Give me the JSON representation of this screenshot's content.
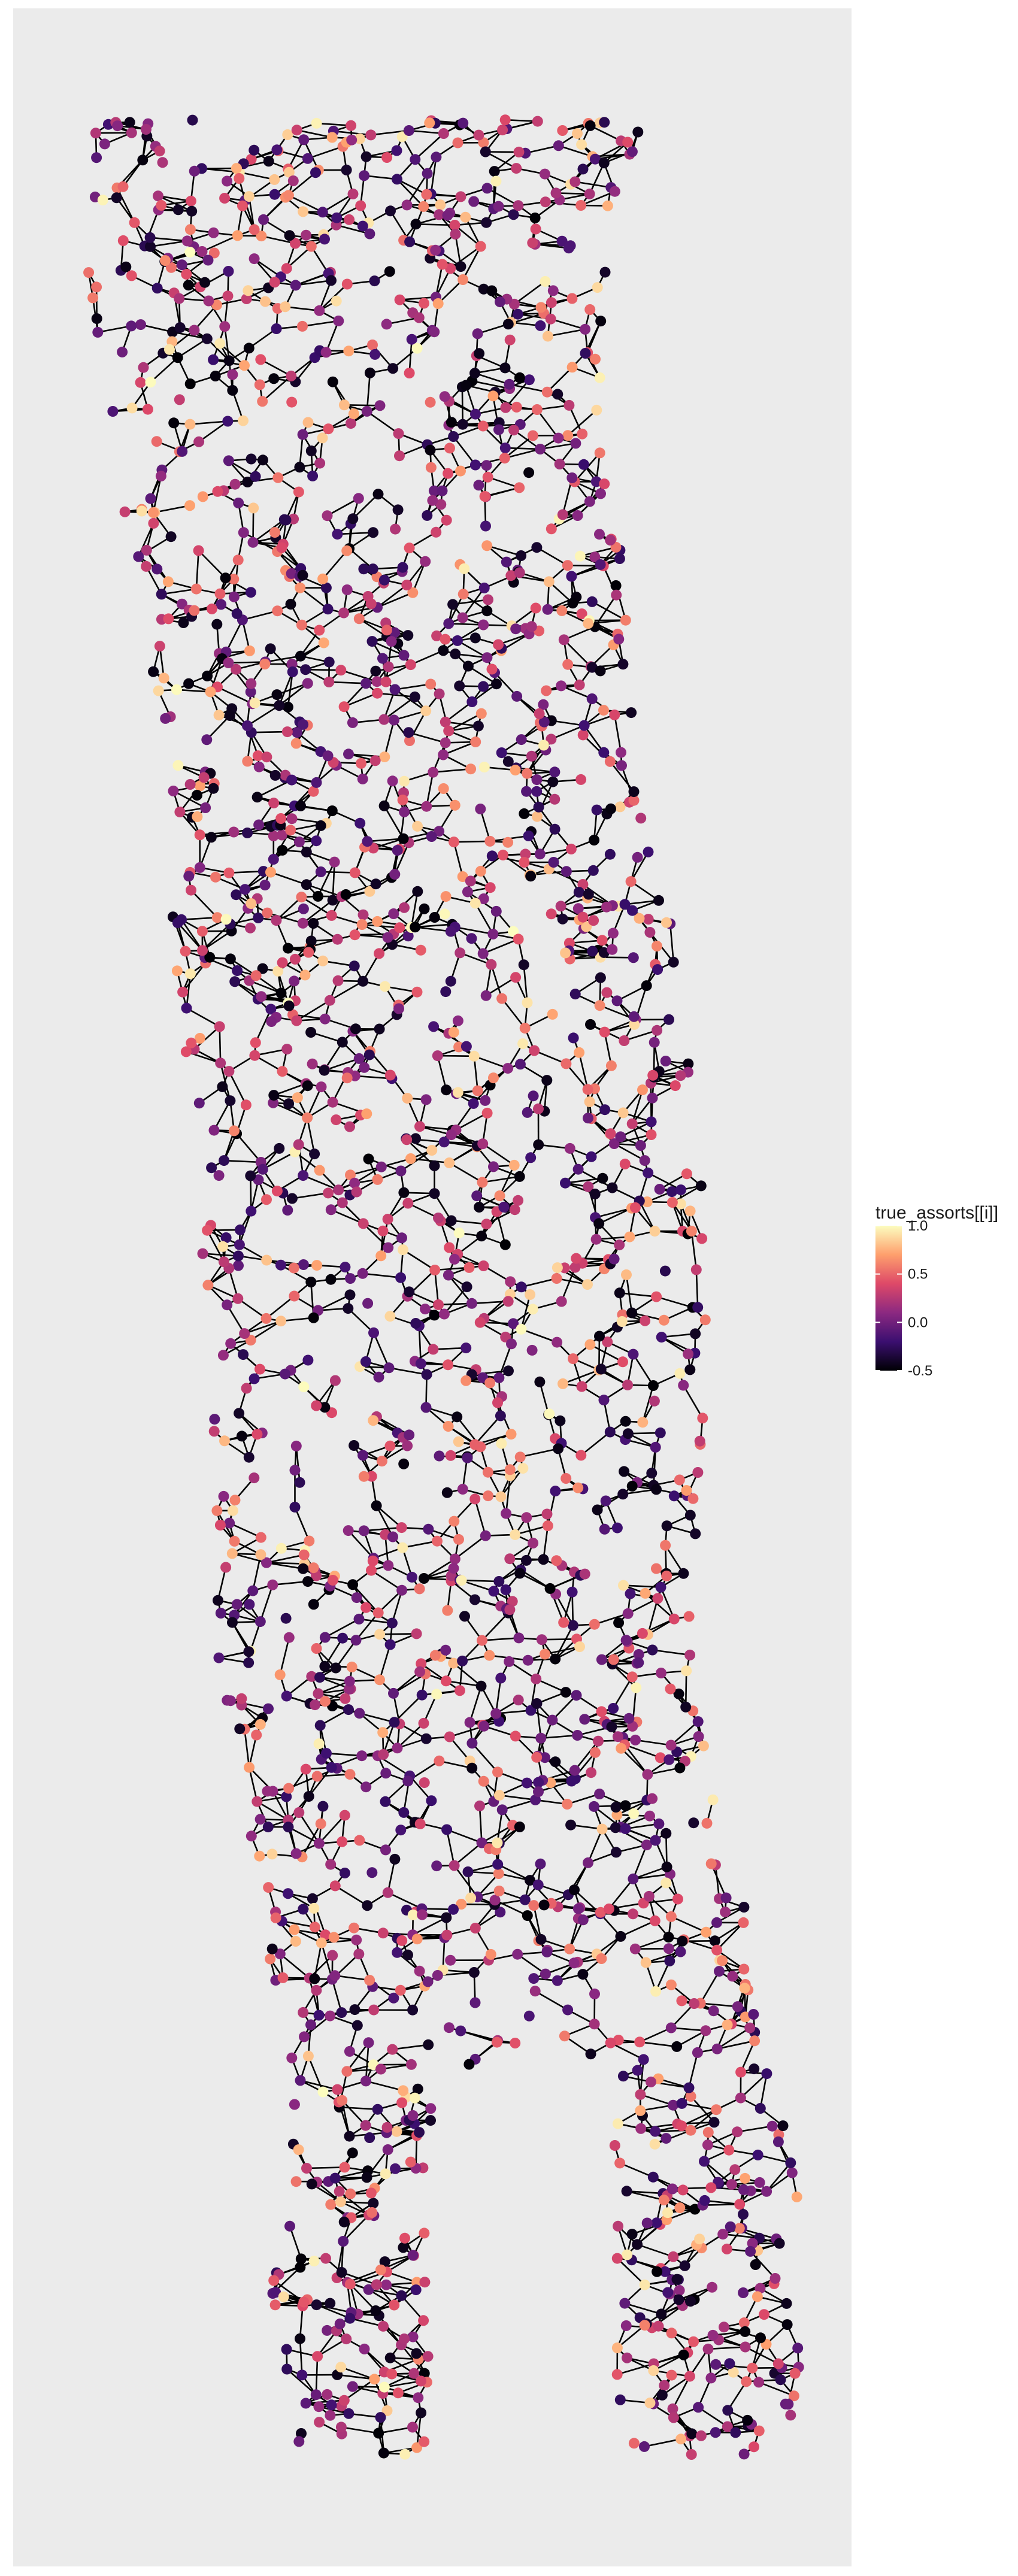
{
  "chart_data": {
    "type": "network-scatter",
    "title": "",
    "xlabel": "",
    "ylabel": "",
    "grid": false,
    "panel_background": "#ebebeb",
    "edge_color": "#000000",
    "legend": {
      "title": "true_assorts[[i]]",
      "position": "right",
      "range": [
        -0.5,
        1.0
      ],
      "ticks": [
        "1.0",
        "0.5",
        "0.0",
        "-0.5"
      ],
      "tick_values": [
        1.0,
        0.5,
        0.0,
        -0.5
      ],
      "colormap": "magma",
      "colors": [
        "#000004",
        "#3b0f70",
        "#8c2981",
        "#de4968",
        "#fe9f6d",
        "#fcfdbf"
      ]
    },
    "nodes": {
      "description_count": 2400,
      "value_range": [
        -0.5,
        1.0
      ]
    }
  }
}
